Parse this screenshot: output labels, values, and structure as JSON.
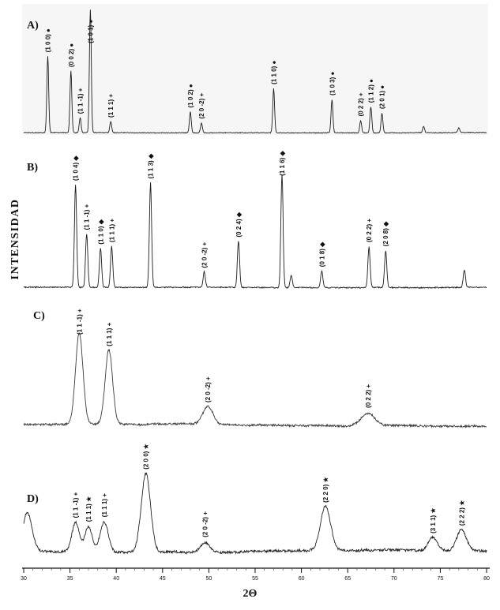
{
  "chart_data": {
    "type": "line",
    "title": "",
    "xlabel": "2Θ",
    "ylabel": "INTENSIDAD",
    "x_range": [
      30,
      80
    ],
    "x_ticks": [
      30,
      35,
      40,
      45,
      50,
      55,
      60,
      65,
      70,
      75,
      80
    ],
    "grid": false,
    "legend_position": "none",
    "panels": [
      {
        "label": "A)",
        "peaks": [
          {
            "hkl": "(1 0 0)",
            "marker": "●",
            "two_theta": 32.6,
            "rel_intensity": 0.62
          },
          {
            "hkl": "(0 0 2)",
            "marker": "●",
            "two_theta": 35.1,
            "rel_intensity": 0.5
          },
          {
            "hkl": "(1 1 -1)",
            "marker": "+",
            "two_theta": 36.1,
            "rel_intensity": 0.12
          },
          {
            "hkl": "(1 0 1)",
            "marker": "●",
            "two_theta": 37.2,
            "rel_intensity": 1.0
          },
          {
            "hkl": "(1 1 1)",
            "marker": "+",
            "two_theta": 39.4,
            "rel_intensity": 0.09
          },
          {
            "hkl": "(1 0 2)",
            "marker": "●",
            "two_theta": 48.0,
            "rel_intensity": 0.17
          },
          {
            "hkl": "(2 0 -2)",
            "marker": "+",
            "two_theta": 49.2,
            "rel_intensity": 0.08
          },
          {
            "hkl": "(1 1 0)",
            "marker": "●",
            "two_theta": 57.0,
            "rel_intensity": 0.36
          },
          {
            "hkl": "(1 0 3)",
            "marker": "●",
            "two_theta": 63.3,
            "rel_intensity": 0.27
          },
          {
            "hkl": "(0 2 2)",
            "marker": "+",
            "two_theta": 66.4,
            "rel_intensity": 0.1
          },
          {
            "hkl": "(1 1 2)",
            "marker": "●",
            "two_theta": 67.5,
            "rel_intensity": 0.21
          },
          {
            "hkl": "(2 0 1)",
            "marker": "●",
            "two_theta": 68.7,
            "rel_intensity": 0.16
          },
          {
            "hkl": "",
            "marker": "",
            "two_theta": 73.2,
            "rel_intensity": 0.05
          },
          {
            "hkl": "",
            "marker": "",
            "two_theta": 77.0,
            "rel_intensity": 0.04
          }
        ]
      },
      {
        "label": "B)",
        "peaks": [
          {
            "hkl": "(1 0 4)",
            "marker": "◆",
            "two_theta": 35.6,
            "rel_intensity": 1.0
          },
          {
            "hkl": "(1 1 -1)",
            "marker": "+",
            "two_theta": 36.8,
            "rel_intensity": 0.52
          },
          {
            "hkl": "(1 1 0)",
            "marker": "◆",
            "two_theta": 38.3,
            "rel_intensity": 0.38
          },
          {
            "hkl": "(1 1 1)",
            "marker": "+",
            "two_theta": 39.5,
            "rel_intensity": 0.4
          },
          {
            "hkl": "(1 1 3)",
            "marker": "◆",
            "two_theta": 43.7,
            "rel_intensity": 1.02
          },
          {
            "hkl": "(2 0 -2)",
            "marker": "+",
            "two_theta": 49.5,
            "rel_intensity": 0.15
          },
          {
            "hkl": "(0 2 4)",
            "marker": "◆",
            "two_theta": 53.2,
            "rel_intensity": 0.45
          },
          {
            "hkl": "(1 1 6)",
            "marker": "◆",
            "two_theta": 57.9,
            "rel_intensity": 1.1
          },
          {
            "hkl": "",
            "marker": "",
            "two_theta": 58.9,
            "rel_intensity": 0.12
          },
          {
            "hkl": "(0 1 8)",
            "marker": "◆",
            "two_theta": 62.2,
            "rel_intensity": 0.16
          },
          {
            "hkl": "(0 2 2)",
            "marker": "+",
            "two_theta": 67.3,
            "rel_intensity": 0.4
          },
          {
            "hkl": "(2 0 8)",
            "marker": "◆",
            "two_theta": 69.1,
            "rel_intensity": 0.36
          },
          {
            "hkl": "",
            "marker": "",
            "two_theta": 77.6,
            "rel_intensity": 0.17
          }
        ]
      },
      {
        "label": "C)",
        "peaks": [
          {
            "hkl": "(1 1 -1)",
            "marker": "+",
            "two_theta": 36.0,
            "rel_intensity": 1.0,
            "width": 0.4
          },
          {
            "hkl": "(1 1 1)",
            "marker": "+",
            "two_theta": 39.2,
            "rel_intensity": 0.82,
            "width": 0.4
          },
          {
            "hkl": "(2 0 -2)",
            "marker": "+",
            "two_theta": 49.9,
            "rel_intensity": 0.2,
            "width": 0.55
          },
          {
            "hkl": "(0 2 2)",
            "marker": "+",
            "two_theta": 67.2,
            "rel_intensity": 0.14,
            "width": 0.7
          }
        ]
      },
      {
        "label": "D)",
        "peaks": [
          {
            "hkl": "",
            "marker": "",
            "two_theta": 30.4,
            "rel_intensity": 0.4,
            "width": 0.5
          },
          {
            "hkl": "(1 1 -1)",
            "marker": "+",
            "two_theta": 35.6,
            "rel_intensity": 0.3,
            "width": 0.4
          },
          {
            "hkl": "(1 1 1)",
            "marker": "★",
            "two_theta": 37.0,
            "rel_intensity": 0.26,
            "width": 0.4
          },
          {
            "hkl": "(1 1 1)",
            "marker": "+",
            "two_theta": 38.7,
            "rel_intensity": 0.31,
            "width": 0.45
          },
          {
            "hkl": "(2 0 0)",
            "marker": "★",
            "two_theta": 43.2,
            "rel_intensity": 0.82,
            "width": 0.5
          },
          {
            "hkl": "(2 0 -2)",
            "marker": "+",
            "two_theta": 49.6,
            "rel_intensity": 0.1,
            "width": 0.5
          },
          {
            "hkl": "(2 2 0)",
            "marker": "★",
            "two_theta": 62.6,
            "rel_intensity": 0.46,
            "width": 0.55
          },
          {
            "hkl": "(3 1 1)",
            "marker": "★",
            "two_theta": 74.2,
            "rel_intensity": 0.14,
            "width": 0.5
          },
          {
            "hkl": "(2 2 2)",
            "marker": "★",
            "two_theta": 77.3,
            "rel_intensity": 0.22,
            "width": 0.5
          }
        ]
      }
    ]
  }
}
